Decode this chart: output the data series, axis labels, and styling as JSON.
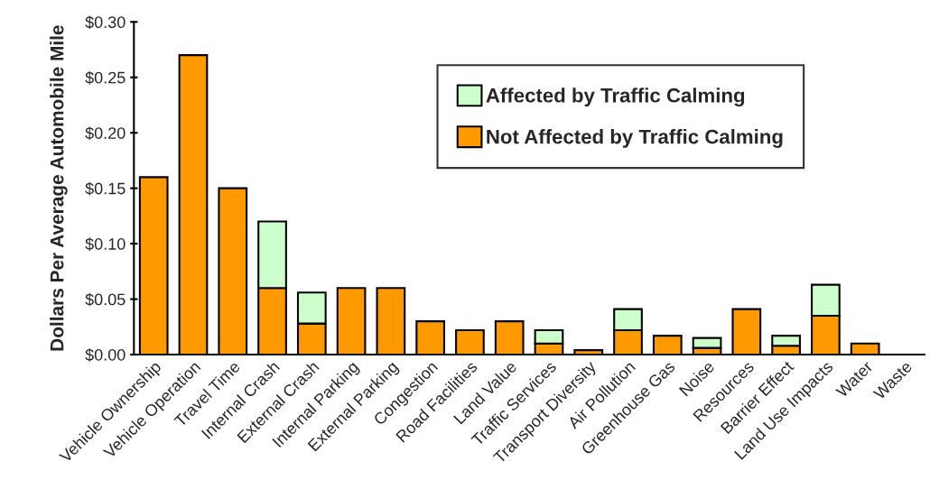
{
  "chart_data": {
    "type": "bar",
    "stacked": true,
    "ylabel": "Dollars Per Average Automobile Mile",
    "categories": [
      "Vehicle Ownership",
      "Vehicle Operation",
      "Travel Time",
      "Internal Crash",
      "External Crash",
      "Internal Parking",
      "External Parking",
      "Congestion",
      "Road Facilities",
      "Land Value",
      "Traffic Services",
      "Transport Diversity",
      "Air Pollution",
      "Greenhouse Gas",
      "Noise",
      "Resources",
      "Barrier Effect",
      "Land Use Impacts",
      "Water",
      "Waste"
    ],
    "series": [
      {
        "name": "Not Affected by Traffic Calming",
        "color": "#ff9900",
        "values": [
          0.16,
          0.27,
          0.15,
          0.06,
          0.028,
          0.06,
          0.06,
          0.03,
          0.022,
          0.03,
          0.01,
          0.004,
          0.022,
          0.017,
          0.006,
          0.041,
          0.008,
          0.035,
          0.01,
          0
        ]
      },
      {
        "name": "Affected by Traffic Calming",
        "color": "#ccffcc",
        "values": [
          0,
          0,
          0,
          0.06,
          0.028,
          0,
          0,
          0,
          0,
          0,
          0.012,
          0,
          0.019,
          0,
          0.009,
          0,
          0.009,
          0.028,
          0,
          0
        ]
      }
    ],
    "ylim": [
      0,
      0.3
    ],
    "yticks": [
      {
        "value": 0,
        "label": "$0.00"
      },
      {
        "value": 0.05,
        "label": "$0.05"
      },
      {
        "value": 0.1,
        "label": "$0.10"
      },
      {
        "value": 0.15,
        "label": "$0.15"
      },
      {
        "value": 0.2,
        "label": "$0.20"
      },
      {
        "value": 0.25,
        "label": "$0.25"
      },
      {
        "value": 0.3,
        "label": "$0.30"
      }
    ],
    "grid": false,
    "legend": "top right"
  }
}
